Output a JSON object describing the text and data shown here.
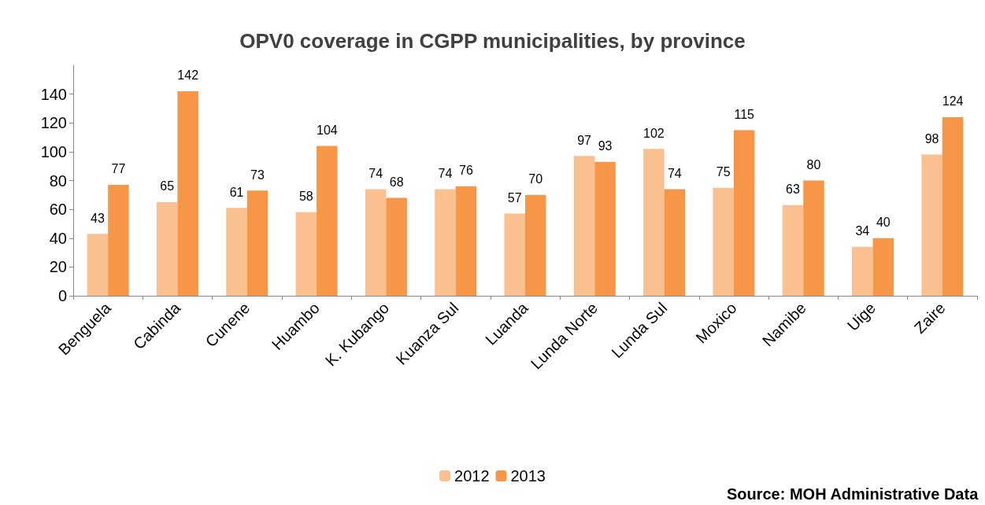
{
  "chart_data": {
    "type": "bar",
    "title": "OPV0 coverage in CGPP municipalities, by province",
    "categories": [
      "Benguela",
      "Cabinda",
      "Cunene",
      "Huambo",
      "K. Kubango",
      "Kuanza Sul",
      "Luanda",
      "Lunda Norte",
      "Lunda Sul",
      "Moxico",
      "Namibe",
      "Uige",
      "Zaire"
    ],
    "series": [
      {
        "name": "2012",
        "color": "#fac090",
        "values": [
          43,
          65,
          61,
          58,
          74,
          74,
          57,
          97,
          102,
          75,
          63,
          34,
          98
        ]
      },
      {
        "name": "2013",
        "color": "#f79646",
        "values": [
          77,
          142,
          73,
          104,
          68,
          76,
          70,
          93,
          74,
          115,
          80,
          40,
          124
        ]
      }
    ],
    "ylim": [
      0,
      160
    ],
    "yticks": [
      0,
      20,
      40,
      60,
      80,
      100,
      120,
      140
    ],
    "grid": false,
    "legend": "bottom",
    "data_labels": true,
    "annotations": [
      "Source: MOH Administrative Data"
    ]
  }
}
